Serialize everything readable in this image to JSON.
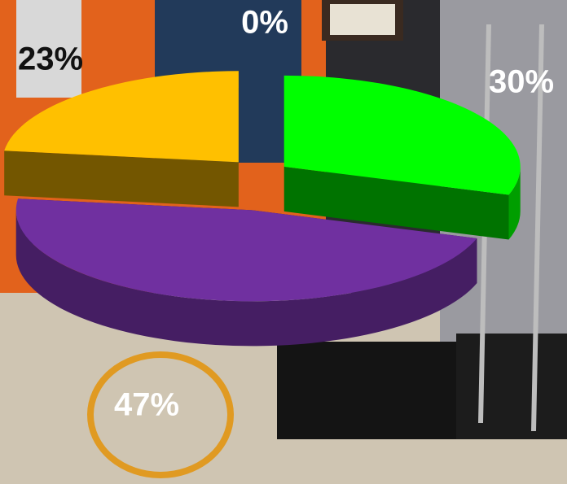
{
  "chart_data": {
    "type": "pie",
    "values": [
      0,
      30,
      47,
      23
    ],
    "value_labels": [
      "0%",
      "30%",
      "47%",
      "23%"
    ],
    "colors": [
      "#a0a0a0",
      "#00ff00",
      "#7030a0",
      "#ffc000"
    ]
  }
}
